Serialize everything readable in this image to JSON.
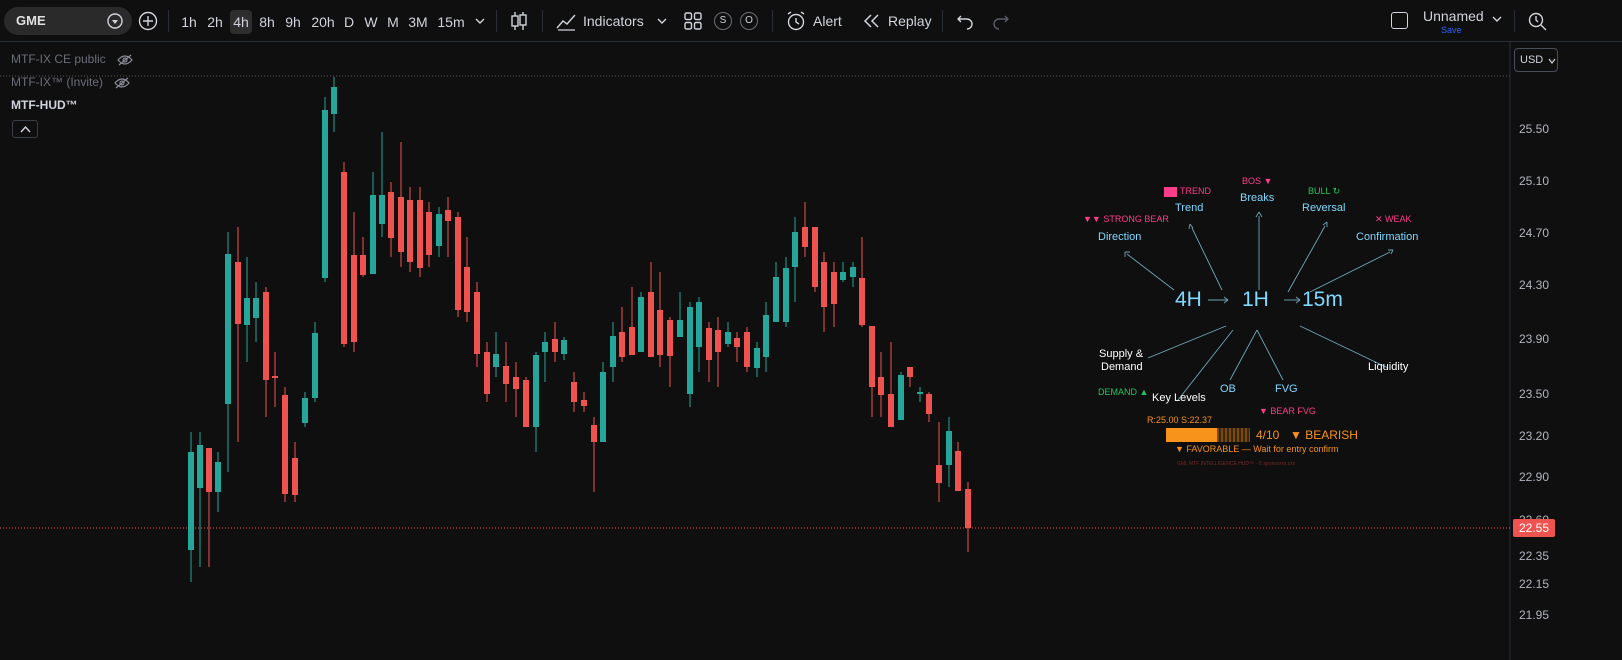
{
  "toolbar": {
    "symbol": "GME",
    "timeframes": [
      "1h",
      "2h",
      "4h",
      "8h",
      "9h",
      "20h",
      "D",
      "W",
      "M",
      "3M",
      "15m"
    ],
    "active_timeframe": "4h",
    "indicators_label": "Indicators",
    "alert_label": "Alert",
    "replay_label": "Replay",
    "layout_name": "Unnamed",
    "save_label": "Save",
    "s_label": "S",
    "o_label": "O"
  },
  "legend": {
    "items": [
      "MTF-IX CE public",
      "MTF-IX™ (Invite)",
      "MTF-HUD™"
    ]
  },
  "currency": "USD",
  "price_axis": {
    "ticks": [
      "25.50",
      "25.10",
      "24.70",
      "24.30",
      "23.90",
      "23.50",
      "23.20",
      "22.90",
      "22.60",
      "22.35",
      "22.15",
      "21.95"
    ],
    "last_price": "22.55"
  },
  "colors": {
    "up": "#26a69a",
    "down": "#ef5350",
    "accent": "#f7931a",
    "hud_blue": "#5ec8f2",
    "pink": "#ff3d8b"
  },
  "hud": {
    "tf_left": "4H",
    "tf_center": "1H",
    "tf_right": "15m",
    "direction": {
      "tag": "▼▼ STRONG BEAR",
      "label": "Direction"
    },
    "trend": {
      "tag": "TREND",
      "label": "Trend"
    },
    "breaks": {
      "tag": "BOS ▼",
      "label": "Breaks"
    },
    "reversal": {
      "tag": "BULL ↻",
      "label": "Reversal"
    },
    "confirmation": {
      "tag": "✕ WEAK",
      "label": "Confirmation"
    },
    "supply_demand": {
      "label1": "Supply &",
      "label2": "Demand",
      "tag": "DEMAND ▲"
    },
    "key_levels": "Key Levels",
    "ob": "OB",
    "fvg": "FVG",
    "fvg_tag": "▼ BEAR FVG",
    "liquidity": "Liquidity",
    "range": "R:25.00 S:22.37",
    "score": "4/10",
    "bias": "▼ BEARISH",
    "status": "▼ FAVORABLE — Wait for entry confirm",
    "footer": "GML MTF INTELLIGENCE HUD™ · © sponsorxx.xxx"
  }
}
